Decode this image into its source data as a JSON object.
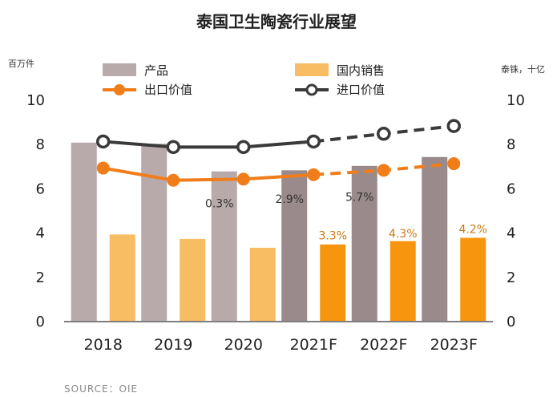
{
  "chart_data": {
    "type": "bar",
    "title": "泰国卫生陶瓷行业展望",
    "left_unit": "百万件",
    "right_unit": "泰铢，十亿",
    "source": "SOURCE：OIE",
    "categories": [
      "2018",
      "2019",
      "2020",
      "2021F",
      "2022F",
      "2023F"
    ],
    "ylim": [
      0,
      10
    ],
    "yticks": [
      0,
      2,
      4,
      6,
      8,
      10
    ],
    "y2lim": [
      0,
      10
    ],
    "y2ticks": [
      0,
      2,
      4,
      6,
      8,
      10
    ],
    "series": [
      {
        "name": "产品",
        "kind": "bar",
        "axis": "left",
        "values": [
          8.05,
          8.0,
          6.75,
          6.8,
          7.0,
          7.4
        ],
        "colors": [
          "#b8aaaa",
          "#b8aaaa",
          "#b8aaaa",
          "#9a8a8c",
          "#9a8a8c",
          "#9a8a8c"
        ]
      },
      {
        "name": "国内销售",
        "kind": "bar",
        "axis": "left",
        "values": [
          3.9,
          3.7,
          3.3,
          3.45,
          3.6,
          3.75
        ],
        "colors": [
          "#f8bc62",
          "#f8bc62",
          "#f8bc62",
          "#f7950f",
          "#f7950f",
          "#f7950f"
        ]
      },
      {
        "name": "出口价值",
        "kind": "line",
        "axis": "right",
        "color": "#f07d1a",
        "values": [
          6.9,
          6.35,
          6.4,
          6.6,
          6.8,
          7.1
        ],
        "forecast_from_index": 3
      },
      {
        "name": "进口价值",
        "kind": "line",
        "axis": "right",
        "color": "#3a3a3a",
        "values": [
          8.1,
          7.85,
          7.85,
          8.1,
          8.45,
          8.8
        ],
        "forecast_from_index": 3
      }
    ],
    "annotations": [
      {
        "text": "0.3%",
        "category_index": 2,
        "y": 5.3,
        "style": "growth"
      },
      {
        "text": "2.9%",
        "category_index": 3,
        "y": 5.5,
        "style": "growth"
      },
      {
        "text": "5.7%",
        "category_index": 4,
        "y": 5.6,
        "style": "growth"
      },
      {
        "text": "3.3%",
        "category_index": 3,
        "y": 3.85,
        "style": "label"
      },
      {
        "text": "4.3%",
        "category_index": 4,
        "y": 3.95,
        "style": "label"
      },
      {
        "text": "4.2%",
        "category_index": 5,
        "y": 4.15,
        "style": "label"
      }
    ],
    "legend_placement": "top",
    "grid": false
  }
}
